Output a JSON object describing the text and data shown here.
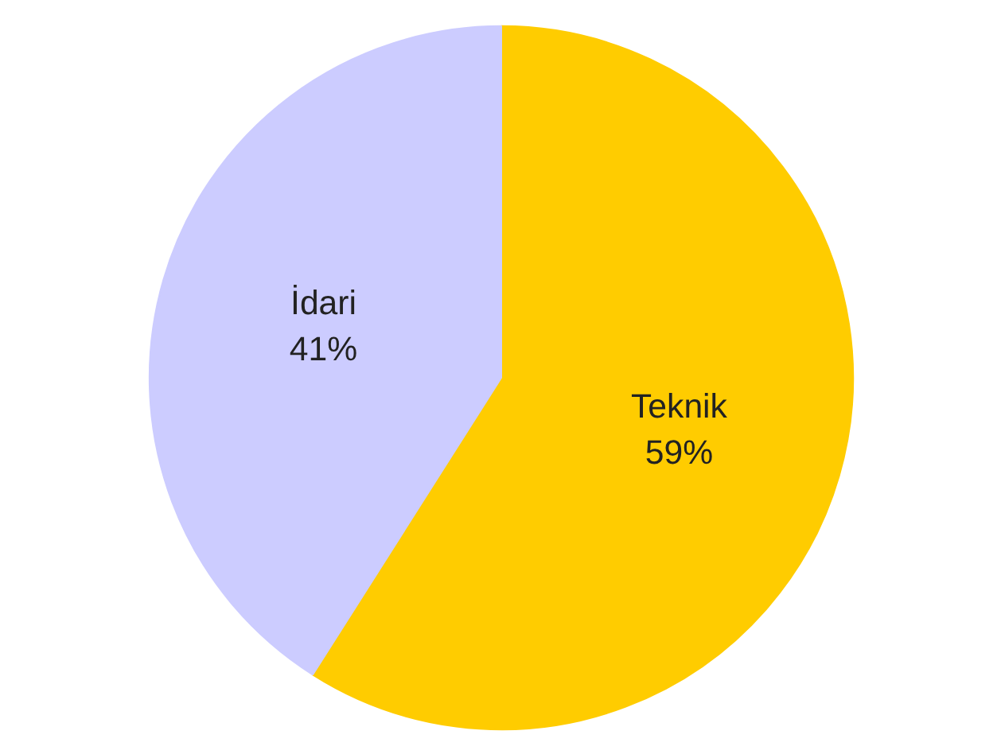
{
  "chart_data": {
    "type": "pie",
    "categories": [
      "Teknik",
      "İdari"
    ],
    "values": [
      59,
      41
    ],
    "colors": [
      "#ffcc00",
      "#ccccff"
    ],
    "value_labels": [
      "59%",
      "41%"
    ]
  }
}
